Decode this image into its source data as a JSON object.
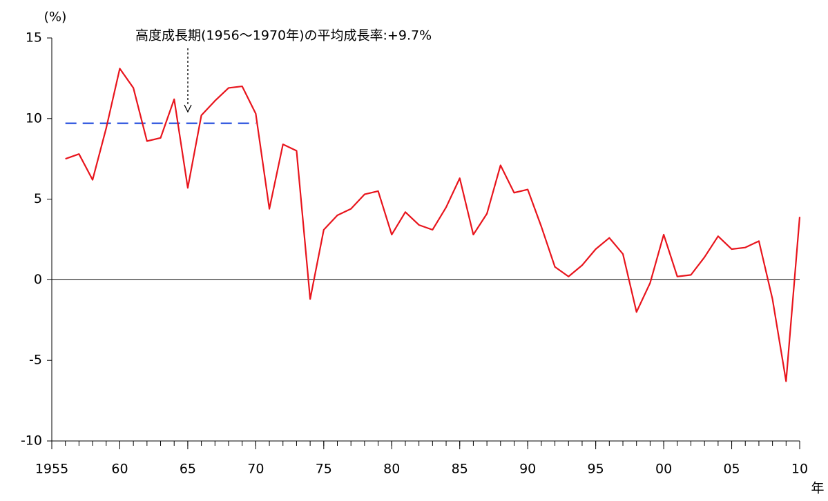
{
  "chart_data": {
    "type": "line",
    "annotation": "高度成長期(1956〜1970年)の平均成長率:+9.7%",
    "y_label": "(%)",
    "x_label": "年",
    "x": [
      1956,
      1957,
      1958,
      1959,
      1960,
      1961,
      1962,
      1963,
      1964,
      1965,
      1966,
      1967,
      1968,
      1969,
      1970,
      1971,
      1972,
      1973,
      1974,
      1975,
      1976,
      1977,
      1978,
      1979,
      1980,
      1981,
      1982,
      1983,
      1984,
      1985,
      1986,
      1987,
      1988,
      1989,
      1990,
      1991,
      1992,
      1993,
      1994,
      1995,
      1996,
      1997,
      1998,
      1999,
      2000,
      2001,
      2002,
      2003,
      2004,
      2005,
      2006,
      2007,
      2008,
      2009,
      2010
    ],
    "series": [
      {
        "color": "#e8141c",
        "values": [
          7.5,
          7.8,
          6.2,
          9.4,
          13.1,
          11.9,
          8.6,
          8.8,
          11.2,
          5.7,
          10.2,
          11.1,
          11.9,
          12.0,
          10.3,
          4.4,
          8.4,
          8.0,
          -1.2,
          3.1,
          4.0,
          4.4,
          5.3,
          5.5,
          2.8,
          4.2,
          3.4,
          3.1,
          4.5,
          6.3,
          2.8,
          4.1,
          7.1,
          5.4,
          5.6,
          3.3,
          0.8,
          0.2,
          0.9,
          1.9,
          2.6,
          1.6,
          -2.0,
          -0.2,
          2.8,
          0.2,
          0.3,
          1.4,
          2.7,
          1.9,
          2.0,
          2.4,
          -1.2,
          -6.3,
          3.9
        ]
      }
    ],
    "average_line": {
      "x": [
        1956,
        1970
      ],
      "value": 9.7,
      "color": "#3a5fe0"
    },
    "xlim": [
      1955,
      2010
    ],
    "xticks": [
      {
        "value": 1955,
        "label": "1955"
      },
      {
        "value": 1960,
        "label": "60"
      },
      {
        "value": 1965,
        "label": "65"
      },
      {
        "value": 1970,
        "label": "70"
      },
      {
        "value": 1975,
        "label": "75"
      },
      {
        "value": 1980,
        "label": "80"
      },
      {
        "value": 1985,
        "label": "85"
      },
      {
        "value": 1990,
        "label": "90"
      },
      {
        "value": 1995,
        "label": "95"
      },
      {
        "value": 2000,
        "label": "00"
      },
      {
        "value": 2005,
        "label": "05"
      },
      {
        "value": 2010,
        "label": "10"
      }
    ],
    "ylim": [
      -10,
      15
    ],
    "yticks": [
      -10,
      -5,
      0,
      5,
      10,
      15
    ]
  }
}
